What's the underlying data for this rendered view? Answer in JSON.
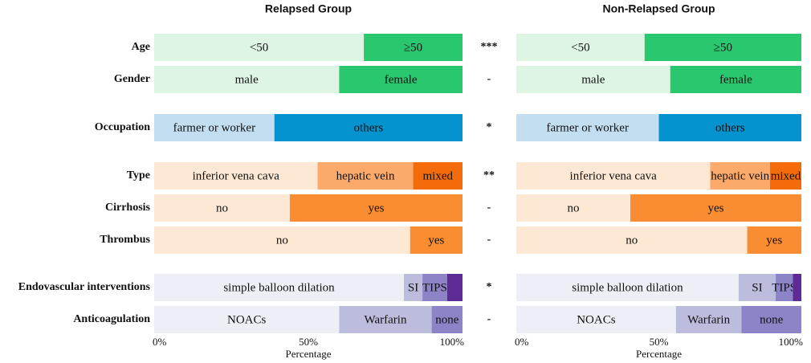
{
  "chart_data": {
    "type": "stacked-bar-horizontal-percent",
    "xlabel": "Percentage",
    "xticks": [
      "0%",
      "50%",
      "100%"
    ],
    "panels": [
      {
        "key": "relapsed",
        "title": "Relapsed Group"
      },
      {
        "key": "nonrelapsed",
        "title": "Non-Relapsed Group"
      }
    ],
    "rows": [
      {
        "label": "Age",
        "significance": "***",
        "segments": [
          {
            "label": "<50",
            "color": "#dff5e3",
            "relapsed": 68,
            "nonrelapsed": 45
          },
          {
            "label": "≥50",
            "color": "#2ac86e",
            "relapsed": 32,
            "nonrelapsed": 55
          }
        ]
      },
      {
        "label": "Gender",
        "significance": "-",
        "segments": [
          {
            "label": "male",
            "color": "#dff5e3",
            "relapsed": 60,
            "nonrelapsed": 54
          },
          {
            "label": "female",
            "color": "#2ac86e",
            "relapsed": 40,
            "nonrelapsed": 46
          }
        ]
      },
      {
        "label": "Occupation",
        "significance": "*",
        "segments": [
          {
            "label": "farmer or worker",
            "color": "#c3def1",
            "relapsed": 39,
            "nonrelapsed": 50
          },
          {
            "label": "others",
            "color": "#0593cf",
            "relapsed": 61,
            "nonrelapsed": 50
          }
        ]
      },
      {
        "label": "Type",
        "significance": "**",
        "segments": [
          {
            "label": "inferior vena cava",
            "color": "#fde8d3",
            "relapsed": 53,
            "nonrelapsed": 68
          },
          {
            "label": "hepatic vein",
            "color": "#fbaa6b",
            "relapsed": 31,
            "nonrelapsed": 21
          },
          {
            "label": "mixed",
            "color": "#f46b0c",
            "relapsed": 16,
            "nonrelapsed": 11
          }
        ]
      },
      {
        "label": "Cirrhosis",
        "significance": "-",
        "segments": [
          {
            "label": "no",
            "color": "#fde8d3",
            "relapsed": 44,
            "nonrelapsed": 40
          },
          {
            "label": "yes",
            "color": "#fa8c31",
            "relapsed": 56,
            "nonrelapsed": 60
          }
        ]
      },
      {
        "label": "Thrombus",
        "significance": "-",
        "segments": [
          {
            "label": "no",
            "color": "#fde8d3",
            "relapsed": 83,
            "nonrelapsed": 81
          },
          {
            "label": "yes",
            "color": "#fa8c31",
            "relapsed": 17,
            "nonrelapsed": 19
          }
        ]
      },
      {
        "label": "Endovascular interventions",
        "significance": "*",
        "segments": [
          {
            "label": "simple balloon dilation",
            "color": "#eeeef7",
            "relapsed": 81,
            "nonrelapsed": 78
          },
          {
            "label": "SI",
            "color": "#bcbcdc",
            "relapsed": 6,
            "nonrelapsed": 13
          },
          {
            "label": "TIPS",
            "color": "#8c84c6",
            "relapsed": 8,
            "nonrelapsed": 6
          },
          {
            "label": "",
            "color": "#5e2a95",
            "relapsed": 5,
            "nonrelapsed": 3
          }
        ]
      },
      {
        "label": "Anticoagulation",
        "significance": "-",
        "segments": [
          {
            "label": "NOACs",
            "color": "#eeeef7",
            "relapsed": 60,
            "nonrelapsed": 56
          },
          {
            "label": "Warfarin",
            "color": "#bcbcdc",
            "relapsed": 30,
            "nonrelapsed": 23
          },
          {
            "label": "none",
            "color": "#8c84c6",
            "relapsed": 10,
            "nonrelapsed": 21
          }
        ]
      }
    ]
  }
}
